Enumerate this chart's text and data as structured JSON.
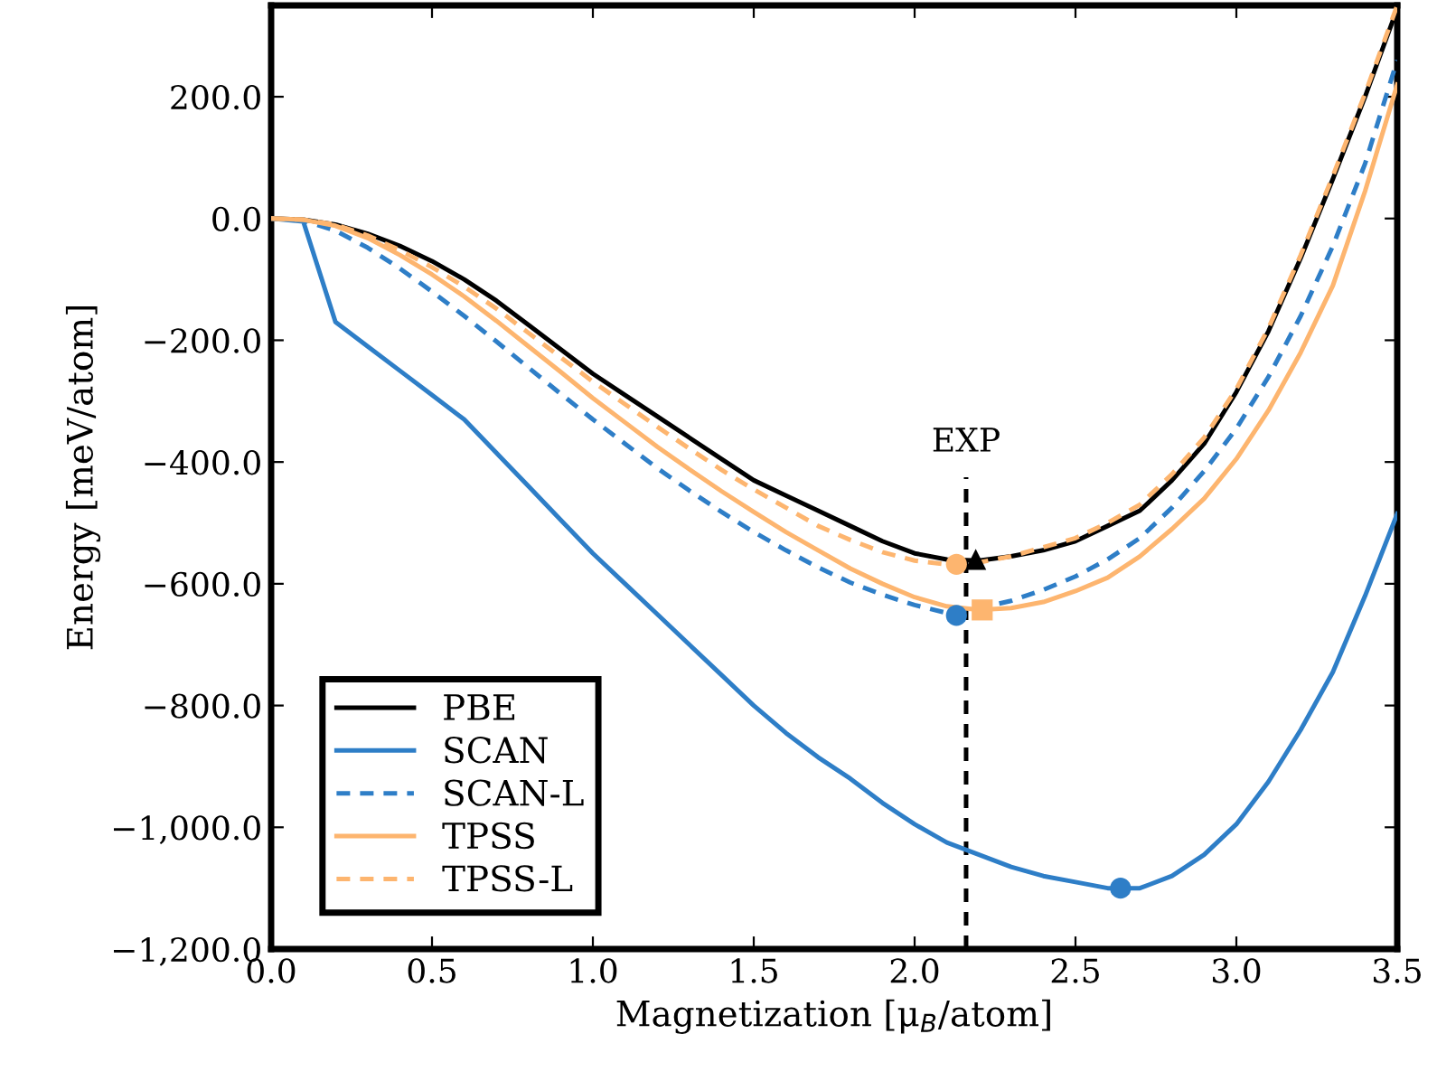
{
  "chart_data": {
    "type": "line",
    "xlabel": "Magnetization [μ$_{B}$/atom]",
    "ylabel": "Energy [meV/atom]",
    "x": [
      0,
      0.1,
      0.2,
      0.3,
      0.4,
      0.5,
      0.6,
      0.7,
      0.8,
      0.9,
      1.0,
      1.1,
      1.2,
      1.3,
      1.4,
      1.5,
      1.6,
      1.7,
      1.8,
      1.9,
      2.0,
      2.1,
      2.2,
      2.3,
      2.4,
      2.5,
      2.6,
      2.7,
      2.8,
      2.9,
      3.0,
      3.1,
      3.2,
      3.3,
      3.4,
      3.5
    ],
    "series": [
      {
        "name": "PBE",
        "color": "#000000",
        "line_style": "solid",
        "values": [
          0,
          -2,
          -10,
          -25,
          -45,
          -70,
          -100,
          -135,
          -175,
          -215,
          -255,
          -290,
          -325,
          -360,
          -395,
          -430,
          -455,
          -480,
          -505,
          -530,
          -550,
          -560,
          -562,
          -555,
          -545,
          -530,
          -505,
          -480,
          -430,
          -370,
          -285,
          -185,
          -65,
          65,
          200,
          345
        ]
      },
      {
        "name": "SCAN",
        "color": "#2e7ec7",
        "line_style": "solid",
        "values": [
          0,
          -5,
          -170,
          -210,
          -250,
          -290,
          -330,
          -385,
          -440,
          -495,
          -550,
          -600,
          -650,
          -700,
          -750,
          -800,
          -845,
          -885,
          -920,
          -960,
          -995,
          -1025,
          -1045,
          -1065,
          -1080,
          -1090,
          -1100,
          -1100,
          -1080,
          -1045,
          -995,
          -925,
          -840,
          -745,
          -620,
          -485
        ]
      },
      {
        "name": "SCAN-L",
        "color": "#2e7ec7",
        "line_style": "dashed",
        "values": [
          0,
          -3,
          -20,
          -48,
          -82,
          -120,
          -160,
          -202,
          -245,
          -288,
          -330,
          -370,
          -410,
          -447,
          -482,
          -515,
          -545,
          -573,
          -598,
          -618,
          -635,
          -648,
          -640,
          -628,
          -610,
          -588,
          -560,
          -525,
          -475,
          -415,
          -345,
          -260,
          -160,
          -45,
          90,
          260
        ]
      },
      {
        "name": "TPSS",
        "color": "#fdb56f",
        "line_style": "solid",
        "values": [
          0,
          -2,
          -12,
          -32,
          -60,
          -92,
          -128,
          -168,
          -210,
          -252,
          -295,
          -335,
          -375,
          -412,
          -448,
          -482,
          -515,
          -545,
          -575,
          -600,
          -622,
          -637,
          -643,
          -640,
          -630,
          -612,
          -590,
          -555,
          -510,
          -460,
          -395,
          -315,
          -220,
          -110,
          45,
          220
        ]
      },
      {
        "name": "TPSS-L",
        "color": "#fdb56f",
        "line_style": "dashed",
        "values": [
          0,
          -2,
          -10,
          -28,
          -52,
          -80,
          -112,
          -148,
          -188,
          -228,
          -268,
          -305,
          -342,
          -378,
          -413,
          -445,
          -475,
          -505,
          -528,
          -548,
          -562,
          -568,
          -565,
          -555,
          -540,
          -525,
          -500,
          -470,
          -420,
          -360,
          -280,
          -180,
          -60,
          70,
          205,
          350
        ]
      },
      {
        "type": "scatter",
        "marker": "triangle",
        "color": "#000000",
        "x": [
          2.19
        ],
        "values": [
          -560
        ]
      },
      {
        "type": "scatter",
        "marker": "circle",
        "color": "#2e7ec7",
        "x": [
          2.64
        ],
        "values": [
          -1100
        ]
      },
      {
        "type": "scatter",
        "marker": "circle",
        "color": "#2e7ec7",
        "x": [
          2.13
        ],
        "values": [
          -652
        ]
      },
      {
        "type": "scatter",
        "marker": "square",
        "color": "#fdb56f",
        "x": [
          2.21
        ],
        "values": [
          -643
        ]
      },
      {
        "type": "scatter",
        "marker": "circle",
        "color": "#fdb56f",
        "x": [
          2.13
        ],
        "values": [
          -568
        ]
      }
    ],
    "ref_lines": [
      {
        "axis": "x",
        "value": 2.16,
        "label": "EXP",
        "color": "#000000",
        "line_style": "dashed"
      }
    ],
    "xlim": [
      0,
      3.5
    ],
    "ylim": [
      -1200,
      350
    ],
    "xticks": [
      {
        "value": 0,
        "label": "0.0"
      },
      {
        "value": 0.5,
        "label": "0.5"
      },
      {
        "value": 1.0,
        "label": "1.0"
      },
      {
        "value": 1.5,
        "label": "1.5"
      },
      {
        "value": 2.0,
        "label": "2.0"
      },
      {
        "value": 2.5,
        "label": "2.5"
      },
      {
        "value": 3.0,
        "label": "3.0"
      },
      {
        "value": 3.5,
        "label": "3.5"
      }
    ],
    "yticks": [
      {
        "value": -1200,
        "label": "−1,200.0"
      },
      {
        "value": -1000,
        "label": "−1,000.0"
      },
      {
        "value": -800,
        "label": "−800.0"
      },
      {
        "value": -600,
        "label": "−600.0"
      },
      {
        "value": -400,
        "label": "−400.0"
      },
      {
        "value": -200,
        "label": "−200.0"
      },
      {
        "value": 0,
        "label": "0.0"
      },
      {
        "value": 200,
        "label": "200.0"
      }
    ],
    "grid": false,
    "legend": "bottom left"
  }
}
